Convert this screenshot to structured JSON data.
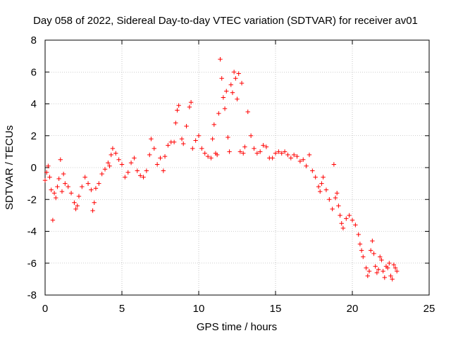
{
  "chart_data": {
    "type": "scatter",
    "title": "Day 058 of 2022, Sidereal Day-to-day VTEC variation (SDTVAR) for receiver av01",
    "xlabel": "GPS time / hours",
    "ylabel": "SDTVAR / TECUs",
    "xlim": [
      0,
      25
    ],
    "ylim": [
      -8,
      8
    ],
    "xticks": [
      0,
      5,
      10,
      15,
      20,
      25
    ],
    "yticks": [
      -8,
      -6,
      -4,
      -2,
      0,
      2,
      4,
      6,
      8
    ],
    "xtick_labels": [
      "0",
      "5",
      "10",
      "15",
      "20",
      "25"
    ],
    "ytick_labels": [
      "-8",
      "-6",
      "-4",
      "-2",
      "0",
      "2",
      "4",
      "6",
      "8"
    ],
    "grid": true,
    "marker": "+",
    "color": "#ff0000",
    "series": [
      {
        "name": "av01",
        "points": [
          [
            0.0,
            -0.8
          ],
          [
            0.1,
            -0.3
          ],
          [
            0.2,
            0.1
          ],
          [
            0.3,
            -0.6
          ],
          [
            0.4,
            -1.4
          ],
          [
            0.5,
            -3.3
          ],
          [
            0.6,
            -1.6
          ],
          [
            0.7,
            -1.9
          ],
          [
            0.8,
            -1.2
          ],
          [
            0.9,
            -0.7
          ],
          [
            1.0,
            0.5
          ],
          [
            1.1,
            -1.5
          ],
          [
            1.2,
            -0.4
          ],
          [
            1.3,
            -1.0
          ],
          [
            1.5,
            -1.2
          ],
          [
            1.7,
            -1.6
          ],
          [
            1.9,
            -2.2
          ],
          [
            2.0,
            -2.6
          ],
          [
            2.1,
            -2.4
          ],
          [
            2.2,
            -1.8
          ],
          [
            2.4,
            -1.2
          ],
          [
            2.6,
            -0.6
          ],
          [
            2.8,
            -1.0
          ],
          [
            3.0,
            -1.4
          ],
          [
            3.1,
            -2.7
          ],
          [
            3.2,
            -2.2
          ],
          [
            3.3,
            -1.3
          ],
          [
            3.5,
            -1.0
          ],
          [
            3.7,
            -0.4
          ],
          [
            3.9,
            -0.1
          ],
          [
            4.1,
            0.3
          ],
          [
            4.2,
            0.1
          ],
          [
            4.3,
            0.8
          ],
          [
            4.4,
            1.2
          ],
          [
            4.6,
            0.9
          ],
          [
            4.8,
            0.5
          ],
          [
            5.0,
            0.2
          ],
          [
            5.2,
            -0.6
          ],
          [
            5.4,
            -0.3
          ],
          [
            5.6,
            0.3
          ],
          [
            5.8,
            0.6
          ],
          [
            6.0,
            -0.2
          ],
          [
            6.2,
            -0.5
          ],
          [
            6.4,
            -0.6
          ],
          [
            6.6,
            -0.2
          ],
          [
            6.8,
            0.8
          ],
          [
            6.9,
            1.8
          ],
          [
            7.1,
            1.2
          ],
          [
            7.3,
            0.2
          ],
          [
            7.5,
            0.6
          ],
          [
            7.7,
            -0.2
          ],
          [
            7.8,
            0.7
          ],
          [
            8.0,
            1.4
          ],
          [
            8.2,
            1.6
          ],
          [
            8.4,
            1.6
          ],
          [
            8.5,
            2.8
          ],
          [
            8.6,
            3.6
          ],
          [
            8.7,
            3.9
          ],
          [
            8.9,
            1.8
          ],
          [
            9.0,
            1.5
          ],
          [
            9.2,
            2.6
          ],
          [
            9.4,
            3.8
          ],
          [
            9.5,
            4.1
          ],
          [
            9.6,
            1.2
          ],
          [
            9.8,
            1.7
          ],
          [
            10.0,
            2.0
          ],
          [
            10.2,
            1.2
          ],
          [
            10.4,
            0.9
          ],
          [
            10.6,
            0.7
          ],
          [
            10.8,
            0.6
          ],
          [
            10.9,
            1.8
          ],
          [
            11.0,
            2.7
          ],
          [
            11.1,
            0.9
          ],
          [
            11.2,
            0.8
          ],
          [
            11.3,
            3.4
          ],
          [
            11.4,
            6.8
          ],
          [
            11.5,
            5.6
          ],
          [
            11.6,
            4.4
          ],
          [
            11.7,
            3.7
          ],
          [
            11.8,
            4.8
          ],
          [
            11.9,
            1.9
          ],
          [
            12.0,
            1.0
          ],
          [
            12.1,
            5.2
          ],
          [
            12.2,
            4.7
          ],
          [
            12.3,
            6.0
          ],
          [
            12.4,
            5.6
          ],
          [
            12.5,
            4.3
          ],
          [
            12.6,
            5.9
          ],
          [
            12.7,
            1.0
          ],
          [
            12.8,
            5.3
          ],
          [
            12.9,
            0.9
          ],
          [
            13.0,
            1.3
          ],
          [
            13.2,
            3.5
          ],
          [
            13.4,
            2.0
          ],
          [
            13.6,
            1.2
          ],
          [
            13.8,
            0.9
          ],
          [
            14.0,
            1.0
          ],
          [
            14.2,
            1.4
          ],
          [
            14.4,
            1.3
          ],
          [
            14.6,
            0.6
          ],
          [
            14.8,
            0.6
          ],
          [
            15.0,
            0.9
          ],
          [
            15.2,
            1.0
          ],
          [
            15.4,
            0.9
          ],
          [
            15.6,
            1.0
          ],
          [
            15.8,
            0.8
          ],
          [
            16.0,
            0.6
          ],
          [
            16.2,
            0.8
          ],
          [
            16.4,
            0.7
          ],
          [
            16.6,
            0.4
          ],
          [
            16.8,
            0.5
          ],
          [
            17.0,
            0.1
          ],
          [
            17.2,
            0.8
          ],
          [
            17.4,
            -0.2
          ],
          [
            17.6,
            -0.6
          ],
          [
            17.8,
            -1.2
          ],
          [
            17.9,
            -1.5
          ],
          [
            18.0,
            -1.0
          ],
          [
            18.1,
            -0.6
          ],
          [
            18.3,
            -1.4
          ],
          [
            18.5,
            -2.0
          ],
          [
            18.7,
            -2.6
          ],
          [
            18.8,
            0.2
          ],
          [
            18.9,
            -1.9
          ],
          [
            19.0,
            -1.6
          ],
          [
            19.1,
            -2.4
          ],
          [
            19.2,
            -3.0
          ],
          [
            19.3,
            -3.5
          ],
          [
            19.4,
            -3.8
          ],
          [
            19.6,
            -3.2
          ],
          [
            19.8,
            -3.0
          ],
          [
            20.0,
            -3.3
          ],
          [
            20.2,
            -3.6
          ],
          [
            20.4,
            -4.2
          ],
          [
            20.5,
            -4.8
          ],
          [
            20.6,
            -5.2
          ],
          [
            20.7,
            -5.6
          ],
          [
            20.9,
            -6.3
          ],
          [
            21.0,
            -6.8
          ],
          [
            21.1,
            -6.5
          ],
          [
            21.2,
            -5.2
          ],
          [
            21.3,
            -4.6
          ],
          [
            21.4,
            -5.4
          ],
          [
            21.5,
            -6.2
          ],
          [
            21.6,
            -6.6
          ],
          [
            21.7,
            -6.4
          ],
          [
            21.8,
            -5.6
          ],
          [
            21.9,
            -5.8
          ],
          [
            22.0,
            -6.5
          ],
          [
            22.1,
            -6.9
          ],
          [
            22.2,
            -6.2
          ],
          [
            22.3,
            -6.3
          ],
          [
            22.4,
            -6.0
          ],
          [
            22.5,
            -6.8
          ],
          [
            22.6,
            -7.0
          ],
          [
            22.7,
            -6.1
          ],
          [
            22.8,
            -6.3
          ],
          [
            22.9,
            -6.5
          ]
        ]
      }
    ]
  }
}
